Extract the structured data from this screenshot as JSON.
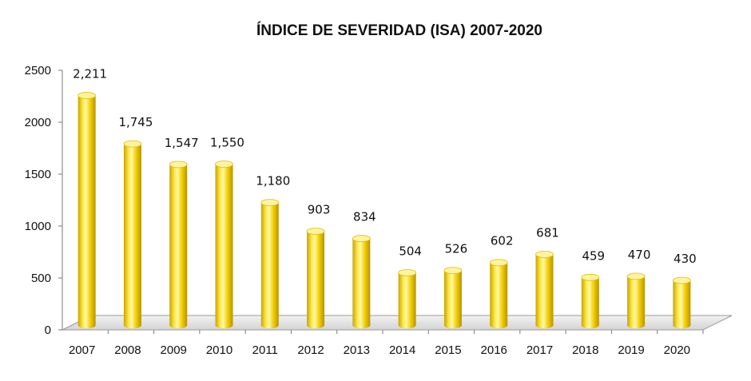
{
  "chart_data": {
    "type": "bar",
    "title": "ÍNDICE DE SEVERIDAD (ISA) 2007-2020",
    "xlabel": "",
    "ylabel": "",
    "categories": [
      "2007",
      "2008",
      "2009",
      "2010",
      "2011",
      "2012",
      "2013",
      "2014",
      "2015",
      "2016",
      "2017",
      "2018",
      "2019",
      "2020"
    ],
    "values": [
      2211,
      1745,
      1547,
      1550,
      1180,
      903,
      834,
      504,
      526,
      602,
      681,
      459,
      470,
      430
    ],
    "data_labels": [
      "2,211",
      "1,745",
      "1,547",
      "1,550",
      "1,180",
      "903",
      "834",
      "504",
      "526",
      "602",
      "681",
      "459",
      "470",
      "430"
    ],
    "ylim": [
      0,
      2500
    ],
    "yticks": [
      "0",
      "500",
      "1000",
      "1500",
      "2000",
      "2500"
    ],
    "grid": false,
    "legend": "none",
    "style": "3d-cylinder",
    "colors": {
      "bar": "#F5D300",
      "bar_dark": "#C9A800",
      "bar_light": "#FFF27A",
      "floor": "#D9D9D9"
    }
  }
}
